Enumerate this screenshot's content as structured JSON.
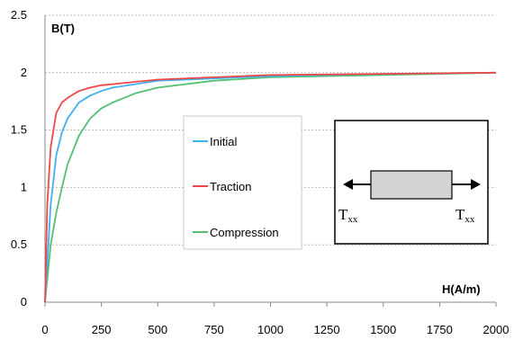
{
  "chart_data": {
    "type": "line",
    "ylabel": "B(T)",
    "xlabel": "H(A/m)",
    "xlim": [
      0,
      2000
    ],
    "ylim": [
      0,
      2.5
    ],
    "x_ticks": [
      "0",
      "250",
      "500",
      "750",
      "1000",
      "1250",
      "1500",
      "1750",
      "2000"
    ],
    "y_ticks": [
      "0",
      "0.5",
      "1",
      "1.5",
      "2",
      "2.5"
    ],
    "grid": "horizontal dotted",
    "legend_position": "center-left",
    "series": [
      {
        "name": "Initial",
        "color": "#3fb0f0",
        "x": [
          0,
          25,
          50,
          75,
          100,
          150,
          200,
          250,
          300,
          400,
          500,
          750,
          1000,
          1500,
          2000
        ],
        "y": [
          0,
          0.85,
          1.28,
          1.48,
          1.6,
          1.74,
          1.8,
          1.84,
          1.87,
          1.9,
          1.93,
          1.95,
          1.97,
          1.99,
          2.0
        ]
      },
      {
        "name": "Traction",
        "color": "#f04848",
        "x": [
          0,
          10,
          25,
          50,
          75,
          100,
          150,
          200,
          250,
          300,
          400,
          500,
          750,
          1000,
          1500,
          2000
        ],
        "y": [
          0,
          0.85,
          1.35,
          1.65,
          1.74,
          1.78,
          1.84,
          1.87,
          1.89,
          1.9,
          1.92,
          1.94,
          1.96,
          1.98,
          1.99,
          2.0
        ]
      },
      {
        "name": "Compression",
        "color": "#55c070",
        "x": [
          0,
          25,
          50,
          75,
          100,
          150,
          200,
          250,
          300,
          400,
          500,
          750,
          1000,
          1500,
          2000
        ],
        "y": [
          0,
          0.5,
          0.78,
          1.0,
          1.2,
          1.45,
          1.6,
          1.69,
          1.74,
          1.82,
          1.87,
          1.93,
          1.96,
          1.98,
          2.0
        ]
      }
    ]
  },
  "inset": {
    "left_label": "T",
    "left_sub": "xx",
    "right_label": "T",
    "right_sub": "xx"
  }
}
